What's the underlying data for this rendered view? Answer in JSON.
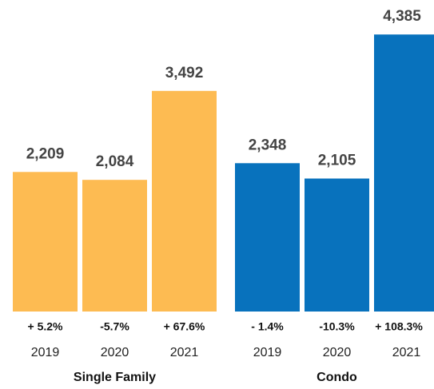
{
  "chart_data": {
    "type": "bar",
    "ylim": [
      0,
      4400
    ],
    "groups": [
      {
        "name": "Single Family",
        "color": "#fdbb52",
        "categories": [
          "2019",
          "2020",
          "2021"
        ],
        "values": [
          2209,
          2084,
          3492
        ],
        "value_labels": [
          "2,209",
          "2,084",
          "3,492"
        ],
        "change_labels": [
          "+ 5.2%",
          "-5.7%",
          "+ 67.6%"
        ]
      },
      {
        "name": "Condo",
        "color": "#0872bd",
        "categories": [
          "2019",
          "2020",
          "2021"
        ],
        "values": [
          2348,
          2105,
          4385
        ],
        "value_labels": [
          "2,348",
          "2,105",
          "4,385"
        ],
        "change_labels": [
          "- 1.4%",
          "-10.3%",
          "+ 108.3%"
        ]
      }
    ]
  }
}
